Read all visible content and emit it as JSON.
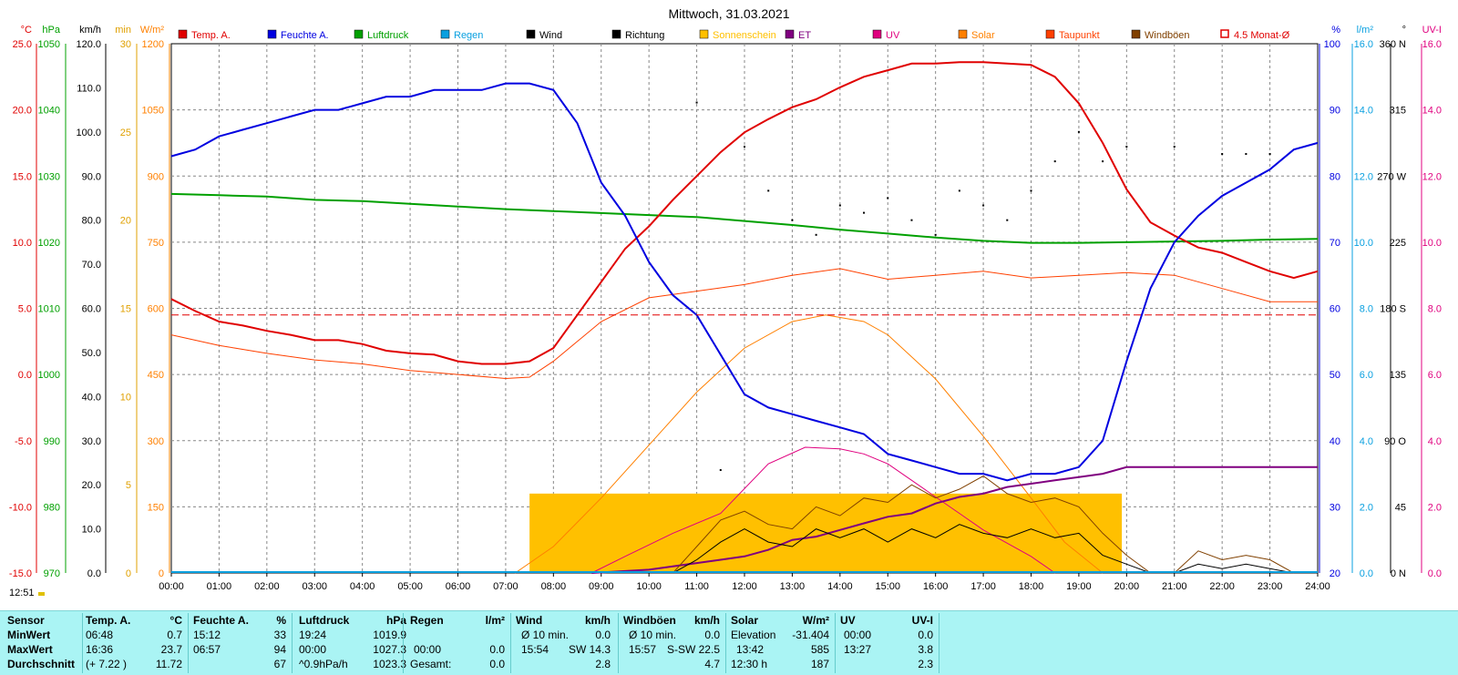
{
  "chart_data": {
    "type": "line",
    "title": "Mittwoch, 31.03.2021",
    "x_ticks": [
      "00:00",
      "01:00",
      "02:00",
      "03:00",
      "04:00",
      "05:00",
      "06:00",
      "07:00",
      "08:00",
      "09:00",
      "10:00",
      "11:00",
      "12:00",
      "13:00",
      "14:00",
      "15:00",
      "16:00",
      "17:00",
      "18:00",
      "19:00",
      "20:00",
      "21:00",
      "22:00",
      "23:00",
      "24:00"
    ],
    "xlim": [
      0,
      24
    ],
    "grid": true,
    "legend_position": "top",
    "legend": [
      {
        "label": "Temp. A.",
        "color": "#e00000"
      },
      {
        "label": "Feuchte A.",
        "color": "#0000e0"
      },
      {
        "label": "Luftdruck",
        "color": "#00a000"
      },
      {
        "label": "Regen",
        "color": "#0aa0e0"
      },
      {
        "label": "Wind",
        "color": "#000000"
      },
      {
        "label": "Richtung",
        "color": "#000000"
      },
      {
        "label": "Sonnenschein",
        "color": "#ffc000"
      },
      {
        "label": "ET",
        "color": "#800080"
      },
      {
        "label": "UV",
        "color": "#e0007f"
      },
      {
        "label": "Solar",
        "color": "#ff8000"
      },
      {
        "label": "Taupunkt",
        "color": "#ff4000"
      },
      {
        "label": "Windböen",
        "color": "#804000"
      },
      {
        "label": "4.5 Monat-Ø",
        "color": "#e00000"
      }
    ],
    "axes": {
      "left": [
        {
          "unit": "°C",
          "color": "#e00000",
          "ticks": [
            "25.0",
            "20.0",
            "15.0",
            "10.0",
            "5.0",
            "0.0",
            "-5.0",
            "-10.0",
            "-15.0"
          ]
        },
        {
          "unit": "hPa",
          "color": "#00a000",
          "ticks": [
            "1050",
            "1040",
            "1030",
            "1020",
            "1010",
            "1000",
            "990",
            "980",
            "970"
          ]
        },
        {
          "unit": "km/h",
          "color": "#000000",
          "ticks": [
            "120.0",
            "110.0",
            "100.0",
            "90.0",
            "80.0",
            "70.0",
            "60.0",
            "50.0",
            "40.0",
            "30.0",
            "20.0",
            "10.0",
            "0.0"
          ]
        },
        {
          "unit": "min",
          "color": "#e0a000",
          "ticks": [
            "30",
            "25",
            "20",
            "15",
            "10",
            "5",
            "0"
          ]
        },
        {
          "unit": "W/m²",
          "color": "#ff8000",
          "ticks": [
            "1200",
            "1050",
            "900",
            "750",
            "600",
            "450",
            "300",
            "150",
            "0"
          ]
        }
      ],
      "right": [
        {
          "unit": "%",
          "color": "#0000e0",
          "ticks": [
            "100",
            "90",
            "80",
            "70",
            "60",
            "50",
            "40",
            "30",
            "20"
          ]
        },
        {
          "unit": "l/m²",
          "color": "#0aa0e0",
          "ticks": [
            "16.0",
            "14.0",
            "12.0",
            "10.0",
            "8.0",
            "6.0",
            "4.0",
            "2.0",
            "0.0"
          ]
        },
        {
          "unit": "°",
          "color": "#000000",
          "ticks": [
            "360 N",
            "315",
            "270 W",
            "225",
            "180 S",
            "135",
            "90 O",
            "45",
            "0 N"
          ]
        },
        {
          "unit": "UV-I",
          "color": "#e0007f",
          "ticks": [
            "16.0",
            "14.0",
            "12.0",
            "10.0",
            "8.0",
            "6.0",
            "4.0",
            "2.0",
            "0.0"
          ]
        }
      ]
    },
    "temp_avg_line": 4.5,
    "series": [
      {
        "name": "Temp. A.",
        "axis": "°C",
        "color": "#e00000",
        "x": [
          0,
          0.5,
          1,
          1.5,
          2,
          2.5,
          3,
          3.5,
          4,
          4.5,
          5,
          5.5,
          6,
          6.5,
          7,
          7.5,
          8,
          8.5,
          9,
          9.5,
          10,
          10.5,
          11,
          11.5,
          12,
          12.5,
          13,
          13.5,
          14,
          14.5,
          15,
          15.5,
          16,
          16.5,
          17,
          17.5,
          18,
          18.5,
          19,
          19.5,
          20,
          20.5,
          21,
          21.5,
          22,
          22.5,
          23,
          23.5,
          24
        ],
        "y": [
          5.7,
          4.8,
          4.0,
          3.7,
          3.3,
          3.0,
          2.6,
          2.6,
          2.3,
          1.8,
          1.6,
          1.5,
          1.0,
          0.8,
          0.8,
          1.0,
          2.0,
          4.5,
          7.0,
          9.5,
          11.2,
          13.2,
          15.0,
          16.8,
          18.3,
          19.3,
          20.2,
          20.8,
          21.7,
          22.5,
          23.0,
          23.5,
          23.5,
          23.6,
          23.6,
          23.5,
          23.4,
          22.5,
          20.5,
          17.5,
          14.0,
          11.5,
          10.5,
          9.6,
          9.2,
          8.5,
          7.8,
          7.3,
          7.8
        ]
      },
      {
        "name": "Feuchte A.",
        "axis": "%",
        "color": "#0000e0",
        "x": [
          0,
          0.5,
          1,
          1.5,
          2,
          2.5,
          3,
          3.5,
          4,
          4.5,
          5,
          5.5,
          6,
          6.5,
          7,
          7.5,
          8,
          8.5,
          9,
          9.5,
          10,
          10.5,
          11,
          11.5,
          12,
          12.5,
          13,
          13.5,
          14,
          14.5,
          15,
          15.5,
          16,
          16.5,
          17,
          17.5,
          18,
          18.5,
          19,
          19.5,
          20,
          20.5,
          21,
          21.5,
          22,
          22.5,
          23,
          23.5,
          24
        ],
        "y": [
          83,
          84,
          86,
          87,
          88,
          89,
          90,
          90,
          91,
          92,
          92,
          93,
          93,
          93,
          94,
          94,
          93,
          88,
          79,
          74,
          67,
          62,
          59,
          53,
          47,
          45,
          44,
          43,
          42,
          41,
          38,
          37,
          36,
          35,
          35,
          34,
          35,
          35,
          36,
          40,
          52,
          63,
          70,
          74,
          77,
          79,
          81,
          84,
          85
        ]
      },
      {
        "name": "Luftdruck",
        "axis": "hPa",
        "color": "#00a000",
        "x": [
          0,
          1,
          2,
          3,
          4,
          5,
          6,
          7,
          8,
          9,
          10,
          11,
          12,
          13,
          14,
          15,
          16,
          17,
          18,
          19,
          20,
          21,
          22,
          23,
          24
        ],
        "y": [
          1027.3,
          1027.1,
          1026.9,
          1026.4,
          1026.2,
          1025.8,
          1025.4,
          1025.0,
          1024.7,
          1024.4,
          1024.1,
          1023.8,
          1023.2,
          1022.6,
          1021.9,
          1021.3,
          1020.7,
          1020.2,
          1019.9,
          1019.9,
          1020.0,
          1020.1,
          1020.2,
          1020.4,
          1020.5
        ]
      },
      {
        "name": "Taupunkt",
        "axis": "°C",
        "color": "#ff4000",
        "x": [
          0,
          1,
          2,
          3,
          4,
          5,
          6,
          7,
          7.5,
          8,
          9,
          10,
          11,
          12,
          13,
          14,
          15,
          16,
          17,
          18,
          19,
          20,
          21,
          22,
          23,
          24
        ],
        "y": [
          3.0,
          2.2,
          1.6,
          1.1,
          0.8,
          0.3,
          0.0,
          -0.3,
          -0.2,
          1.0,
          4.0,
          5.8,
          6.3,
          6.8,
          7.5,
          8.0,
          7.2,
          7.5,
          7.8,
          7.3,
          7.5,
          7.7,
          7.5,
          6.5,
          5.5,
          5.5
        ]
      },
      {
        "name": "Solar",
        "axis": "W/m²",
        "color": "#ff8000",
        "x": [
          7.2,
          8,
          9,
          10,
          11,
          12,
          13,
          13.7,
          14.5,
          15,
          16,
          17,
          18,
          18.7,
          19.5
        ],
        "y": [
          0,
          60,
          170,
          290,
          410,
          510,
          570,
          585,
          570,
          540,
          440,
          310,
          170,
          70,
          0
        ]
      },
      {
        "name": "UV",
        "axis": "UV-I",
        "color": "#e0007f",
        "x": [
          8.8,
          9.5,
          10.5,
          11.5,
          12.5,
          13.27,
          14,
          14.5,
          15,
          15.5,
          16,
          16.5,
          17,
          17.5,
          18,
          18.5
        ],
        "y": [
          0,
          0.5,
          1.2,
          1.8,
          3.3,
          3.8,
          3.75,
          3.6,
          3.3,
          2.8,
          2.3,
          1.8,
          1.3,
          0.9,
          0.5,
          0
        ]
      },
      {
        "name": "ET",
        "axis": "l/m²",
        "color": "#800080",
        "x": [
          8.8,
          10,
          10.5,
          11,
          11.5,
          12,
          12.5,
          13,
          13.5,
          14,
          14.5,
          15,
          15.5,
          16,
          16.5,
          17,
          17.5,
          18,
          18.5,
          19,
          19.5,
          20,
          24
        ],
        "y": [
          0,
          0.1,
          0.2,
          0.3,
          0.4,
          0.5,
          0.7,
          1.0,
          1.1,
          1.3,
          1.5,
          1.7,
          1.8,
          2.1,
          2.3,
          2.4,
          2.6,
          2.7,
          2.8,
          2.9,
          3.0,
          3.2,
          3.2
        ]
      },
      {
        "name": "Sonnenschein",
        "axis": "min",
        "color": "#ffc000",
        "x": [
          7.5,
          19.9
        ],
        "y": [
          4.5,
          4.5
        ]
      },
      {
        "name": "Wind",
        "axis": "km/h",
        "color": "#000000",
        "x": [
          10.5,
          11,
          11.5,
          12,
          12.5,
          13,
          13.5,
          14,
          14.5,
          15,
          15.5,
          16,
          16.5,
          17,
          17.5,
          18,
          18.5,
          19,
          19.5,
          20,
          20.5,
          21,
          21.5,
          22,
          22.5,
          23,
          23.5
        ],
        "y": [
          0,
          3,
          7,
          10,
          7,
          6,
          10,
          8,
          10,
          7,
          10,
          8,
          11,
          9,
          8,
          10,
          8,
          9,
          4,
          2,
          0,
          0,
          2,
          1,
          2,
          1,
          0
        ]
      },
      {
        "name": "Windböen",
        "axis": "km/h",
        "color": "#804000",
        "x": [
          10.5,
          11,
          11.5,
          12,
          12.5,
          13,
          13.5,
          14,
          14.5,
          15,
          15.5,
          16,
          16.5,
          17,
          17.5,
          18,
          18.5,
          19,
          19.5,
          20,
          20.5,
          21,
          21.5,
          22,
          22.5,
          23,
          23.5
        ],
        "y": [
          0,
          6,
          12,
          14,
          11,
          10,
          15,
          13,
          17,
          16,
          20,
          17,
          19,
          22,
          18,
          16,
          17,
          15,
          9,
          4,
          0,
          0,
          5,
          3,
          4,
          3,
          0
        ]
      },
      {
        "name": "Richtung",
        "axis": "°",
        "color": "#000000",
        "x": [
          11,
          11.5,
          12,
          12.5,
          13,
          13.5,
          14,
          14.5,
          15,
          15.5,
          16,
          16.5,
          17,
          17.5,
          18,
          18.5,
          19,
          19.5,
          20,
          21,
          22,
          22.5,
          23
        ],
        "y": [
          320,
          70,
          290,
          260,
          240,
          230,
          250,
          245,
          255,
          240,
          230,
          260,
          250,
          240,
          260,
          280,
          300,
          280,
          290,
          290,
          285,
          285,
          285
        ]
      }
    ]
  },
  "time_label": "12:51",
  "stats": {
    "headers": {
      "sensor": "Sensor",
      "temp": "Temp. A.",
      "temp_unit": "°C",
      "hum": "Feuchte A.",
      "hum_unit": "%",
      "press": "Luftdruck",
      "press_unit": "hPa",
      "rain": "Regen",
      "rain_unit": "l/m²",
      "wind": "Wind",
      "wind_unit": "km/h",
      "gust": "Windböen",
      "gust_unit": "km/h",
      "solar": "Solar",
      "solar_unit": "W/m²",
      "uv": "UV",
      "uv_unit": "UV-I"
    },
    "rows": [
      {
        "label": "MinWert",
        "temp_t": "06:48",
        "temp_v": "0.7",
        "hum_t": "15:12",
        "hum_v": "33",
        "press_t": "19:24",
        "press_v": "1019.9",
        "rain_t": "",
        "rain_v": "",
        "wind_t": "Ø 10 min.",
        "wind_v": "0.0",
        "gust_t": "Ø 10 min.",
        "gust_v": "0.0",
        "solar_t": "Elevation",
        "solar_v": "-31.404",
        "uv_t": "00:00",
        "uv_v": "0.0"
      },
      {
        "label": "MaxWert",
        "temp_t": "16:36",
        "temp_v": "23.7",
        "hum_t": "06:57",
        "hum_v": "94",
        "press_t": "00:00",
        "press_v": "1027.3",
        "rain_t": "00:00",
        "rain_v": "0.0",
        "wind_t": "15:54",
        "wind_v": "SW 14.3",
        "gust_t": "15:57",
        "gust_v": "S-SW 22.5",
        "solar_t": "13:42",
        "solar_v": "585",
        "uv_t": "13:27",
        "uv_v": "3.8"
      },
      {
        "label": "Durchschnitt",
        "temp_t": "(+ 7.22 )",
        "temp_v": "11.72",
        "hum_t": "",
        "hum_v": "67",
        "press_t": "^0.9hPa/h",
        "press_v": "1023.3",
        "rain_t": "Gesamt:",
        "rain_v": "0.0",
        "wind_t": "",
        "wind_v": "2.8",
        "gust_t": "",
        "gust_v": "4.7",
        "solar_t": "12:30 h",
        "solar_v": "187",
        "uv_t": "",
        "uv_v": "2.3"
      }
    ]
  }
}
